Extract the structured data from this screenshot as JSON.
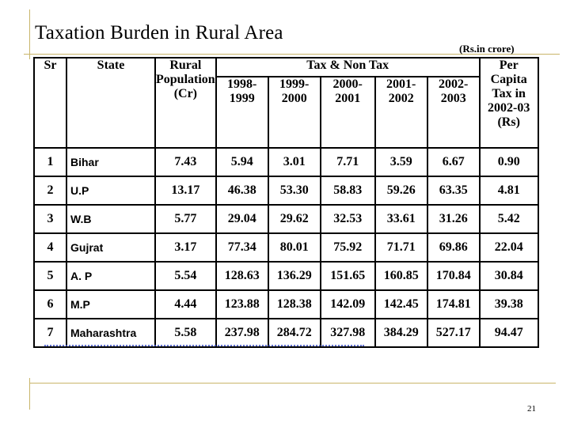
{
  "slide": {
    "title": "Taxation Burden in Rural Area",
    "unit_note": "(Rs.in crore)",
    "page_number": "21"
  },
  "table": {
    "headers": {
      "sr": "Sr",
      "state": "State",
      "rural_population": "Rural Population (Cr)",
      "tax_group": "Tax & Non Tax",
      "years": [
        "1998-1999",
        "1999-2000",
        "2000-2001",
        "2001-2002",
        "2002-2003"
      ],
      "per_capita": "Per Capita Tax in 2002-03 (Rs)"
    },
    "rows": [
      {
        "sr": "1",
        "state": "Bihar",
        "pop": "7.43",
        "y1": "5.94",
        "y2": "3.01",
        "y3": "7.71",
        "y4": "3.59",
        "y5": "6.67",
        "pc": "0.90"
      },
      {
        "sr": "2",
        "state": "U.P",
        "pop": "13.17",
        "y1": "46.38",
        "y2": "53.30",
        "y3": "58.83",
        "y4": "59.26",
        "y5": "63.35",
        "pc": "4.81"
      },
      {
        "sr": "3",
        "state": "W.B",
        "pop": "5.77",
        "y1": "29.04",
        "y2": "29.62",
        "y3": "32.53",
        "y4": "33.61",
        "y5": "31.26",
        "pc": "5.42"
      },
      {
        "sr": "4",
        "state": "Gujrat",
        "pop": "3.17",
        "y1": "77.34",
        "y2": "80.01",
        "y3": "75.92",
        "y4": "71.71",
        "y5": "69.86",
        "pc": "22.04"
      },
      {
        "sr": "5",
        "state": "A. P",
        "pop": "5.54",
        "y1": "128.63",
        "y2": "136.29",
        "y3": "151.65",
        "y4": "160.85",
        "y5": "170.84",
        "pc": "30.84"
      },
      {
        "sr": "6",
        "state": "M.P",
        "pop": "4.44",
        "y1": "123.88",
        "y2": "128.38",
        "y3": "142.09",
        "y4": "142.45",
        "y5": "174.81",
        "pc": "39.38"
      },
      {
        "sr": "7",
        "state": "Maharashtra",
        "pop": "5.58",
        "y1": "237.98",
        "y2": "284.72",
        "y3": "327.98",
        "y4": "384.29",
        "y5": "527.17",
        "pc": "94.47"
      }
    ]
  }
}
